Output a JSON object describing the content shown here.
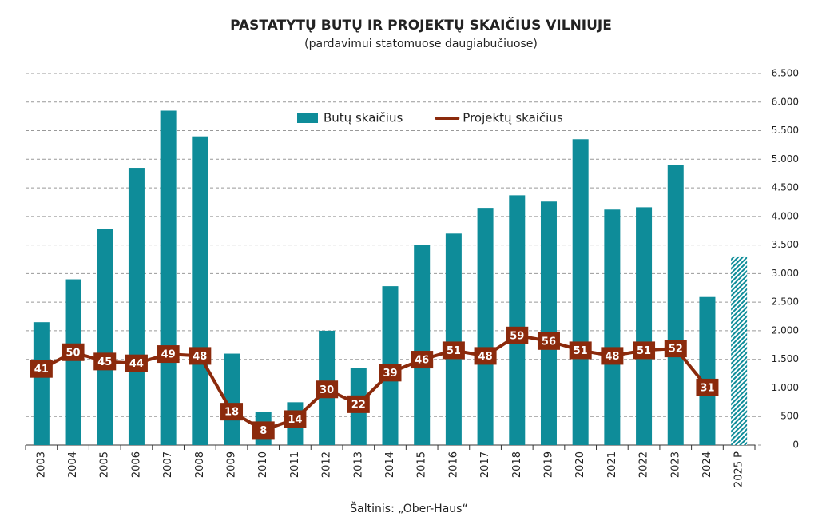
{
  "chart_data": {
    "type": "bar+line",
    "title": "PASTATYTŲ BUTŲ IR PROJEKTŲ SKAIČIUS VILNIUJE",
    "subtitle": "(pardavimui statomuose daugiabučiuose)",
    "source": "Šaltinis: „Ober-Haus“",
    "categories": [
      "2003",
      "2004",
      "2005",
      "2006",
      "2007",
      "2008",
      "2009",
      "2010",
      "2011",
      "2012",
      "2013",
      "2014",
      "2015",
      "2016",
      "2017",
      "2018",
      "2019",
      "2020",
      "2021",
      "2022",
      "2023",
      "2024",
      "2025 P"
    ],
    "series": [
      {
        "name": "Butų skaičius",
        "type": "bar",
        "color": "#0e8c99",
        "values": [
          2150,
          2900,
          3780,
          4850,
          5850,
          5400,
          1600,
          580,
          750,
          2000,
          1350,
          2780,
          3500,
          3700,
          4150,
          4370,
          4260,
          5350,
          4120,
          4160,
          4900,
          2590,
          3300
        ],
        "hatch": [
          false,
          false,
          false,
          false,
          false,
          false,
          false,
          false,
          false,
          false,
          false,
          false,
          false,
          false,
          false,
          false,
          false,
          false,
          false,
          false,
          false,
          false,
          true
        ]
      },
      {
        "name": "Projektų skaičius",
        "type": "line",
        "axis": "y2",
        "color": "#8b2a0c",
        "values": [
          41,
          50,
          45,
          44,
          49,
          48,
          18,
          8,
          14,
          30,
          22,
          39,
          46,
          51,
          48,
          59,
          56,
          51,
          48,
          51,
          52,
          31,
          null
        ]
      }
    ],
    "ylim": [
      0,
      6500
    ],
    "yticks": [
      0,
      500,
      {
        "value": 1000,
        "label": "1.000"
      },
      {
        "value": 1500,
        "label": "1.500"
      },
      {
        "value": 2000,
        "label": "2.000"
      },
      {
        "value": 2500,
        "label": "2.500"
      },
      {
        "value": 3000,
        "label": "3.000"
      },
      {
        "value": 3500,
        "label": "3.500"
      },
      {
        "value": 4000,
        "label": "4.000"
      },
      {
        "value": 4500,
        "label": "4.500"
      },
      {
        "value": 5000,
        "label": "5.000"
      },
      {
        "value": 5500,
        "label": "5.500"
      },
      {
        "value": 6000,
        "label": "6.000"
      },
      {
        "value": 6500,
        "label": "6.500"
      }
    ],
    "y2lim": [
      0,
      200
    ],
    "grid": true,
    "legend": "top"
  }
}
